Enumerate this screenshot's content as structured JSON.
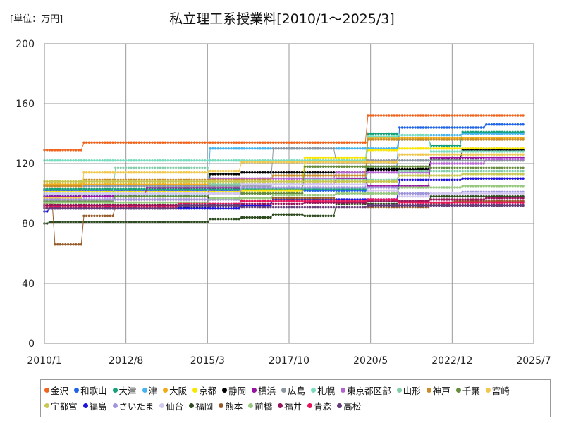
{
  "chart_data": {
    "type": "line",
    "title": "私立理工系授業料[2010/1～2025/3]",
    "unit_label": "[単位：万円]",
    "xlabel": "",
    "ylabel": "",
    "xlim": [
      "2010/1",
      "2025/7"
    ],
    "ylim": [
      0,
      200
    ],
    "x_ticks": [
      "2010/1",
      "2012/8",
      "2015/3",
      "2017/10",
      "2020/5",
      "2022/12",
      "2025/7"
    ],
    "y_ticks": [
      0,
      40,
      80,
      120,
      160,
      200
    ],
    "grid": true,
    "legend_position": "bottom",
    "series": [
      {
        "name": "金沢",
        "color": "#f0641e",
        "points": [
          [
            "2010/1",
            129
          ],
          [
            "2011/4",
            134
          ],
          [
            "2020/4",
            152
          ]
        ]
      },
      {
        "name": "和歌山",
        "color": "#1e64e6",
        "points": [
          [
            "2010/1",
            102
          ],
          [
            "2020/4",
            118
          ],
          [
            "2021/4",
            144
          ],
          [
            "2024/1",
            146
          ]
        ]
      },
      {
        "name": "大津",
        "color": "#14a078",
        "points": [
          [
            "2010/1",
            103
          ],
          [
            "2020/4",
            140
          ],
          [
            "2021/4",
            136
          ],
          [
            "2022/4",
            132
          ],
          [
            "2023/4",
            141
          ]
        ]
      },
      {
        "name": "津",
        "color": "#46b4f0",
        "points": [
          [
            "2010/1",
            99
          ],
          [
            "2015/4",
            130
          ],
          [
            "2021/4",
            139
          ],
          [
            "2023/4",
            140
          ]
        ]
      },
      {
        "name": "大阪",
        "color": "#f0aa14",
        "points": [
          [
            "2010/1",
            106
          ],
          [
            "2018/4",
            122
          ],
          [
            "2020/4",
            137
          ],
          [
            "2023/4",
            137
          ]
        ]
      },
      {
        "name": "京都",
        "color": "#fae600",
        "points": [
          [
            "2010/1",
            101
          ],
          [
            "2016/4",
            102
          ],
          [
            "2018/4",
            124
          ],
          [
            "2020/4",
            129
          ],
          [
            "2021/4",
            130
          ]
        ]
      },
      {
        "name": "静岡",
        "color": "#000000",
        "points": [
          [
            "2010/1",
            91
          ],
          [
            "2015/4",
            113
          ],
          [
            "2016/4",
            114
          ],
          [
            "2020/4",
            116
          ],
          [
            "2022/4",
            123
          ],
          [
            "2023/4",
            129
          ]
        ]
      },
      {
        "name": "横浜",
        "color": "#9614a0",
        "points": [
          [
            "2010/1",
            98
          ],
          [
            "2013/4",
            104
          ],
          [
            "2016/4",
            106
          ],
          [
            "2019/4",
            110
          ],
          [
            "2020/4",
            105
          ],
          [
            "2022/4",
            124
          ]
        ]
      },
      {
        "name": "広島",
        "color": "#8c96a0",
        "points": [
          [
            "2010/1",
            105
          ],
          [
            "2017/4",
            130
          ],
          [
            "2019/4",
            121
          ],
          [
            "2020/4",
            122
          ],
          [
            "2022/4",
            122
          ]
        ]
      },
      {
        "name": "札幌",
        "color": "#78dcbe",
        "points": [
          [
            "2010/1",
            122
          ],
          [
            "2015/4",
            122
          ],
          [
            "2020/4",
            138
          ],
          [
            "2021/4",
            139
          ],
          [
            "2022/4",
            128
          ]
        ]
      },
      {
        "name": "東京都区部",
        "color": "#b464d2",
        "points": [
          [
            "2010/1",
            96
          ],
          [
            "2015/4",
            110
          ],
          [
            "2019/4",
            114
          ],
          [
            "2022/4",
            120
          ],
          [
            "2024/1",
            123
          ]
        ]
      },
      {
        "name": "山形",
        "color": "#82cdaa",
        "points": [
          [
            "2010/1",
            100
          ],
          [
            "2012/4",
            117
          ],
          [
            "2015/4",
            106
          ],
          [
            "2018/4",
            109
          ],
          [
            "2021/4",
            115
          ]
        ]
      },
      {
        "name": "神戸",
        "color": "#c88c28",
        "points": [
          [
            "2010/1",
            105
          ],
          [
            "2011/4",
            109
          ],
          [
            "2017/4",
            112
          ],
          [
            "2020/4",
            136
          ]
        ]
      },
      {
        "name": "千葉",
        "color": "#648c3c",
        "points": [
          [
            "2010/1",
            95
          ],
          [
            "2012/4",
            98
          ],
          [
            "2015/4",
            100
          ],
          [
            "2018/4",
            118
          ],
          [
            "2022/4",
            117
          ]
        ]
      },
      {
        "name": "宮崎",
        "color": "#f0c850",
        "points": [
          [
            "2010/1",
            97
          ],
          [
            "2011/4",
            114
          ],
          [
            "2015/4",
            115
          ],
          [
            "2016/4",
            121
          ],
          [
            "2021/4",
            126
          ]
        ]
      },
      {
        "name": "宇都宮",
        "color": "#c8c850",
        "points": [
          [
            "2010/1",
            108
          ],
          [
            "2016/4",
            108
          ],
          [
            "2021/4",
            112
          ],
          [
            "2023/4",
            113
          ]
        ]
      },
      {
        "name": "福島",
        "color": "#1e14dc",
        "points": [
          [
            "2010/1",
            88
          ],
          [
            "2010/3",
            90
          ],
          [
            "2016/4",
            92
          ],
          [
            "2017/4",
            96
          ],
          [
            "2021/4",
            109
          ],
          [
            "2023/4",
            110
          ]
        ]
      },
      {
        "name": "さいたま",
        "color": "#a096dc",
        "points": [
          [
            "2010/1",
            96
          ],
          [
            "2016/4",
            104
          ],
          [
            "2021/4",
            100
          ],
          [
            "2023/4",
            101
          ]
        ]
      },
      {
        "name": "仙台",
        "color": "#d2c8f0",
        "points": [
          [
            "2010/1",
            100
          ],
          [
            "2016/4",
            106
          ],
          [
            "2020/4",
            102
          ],
          [
            "2021/4",
            98
          ],
          [
            "2022/4",
            100
          ]
        ]
      },
      {
        "name": "福岡",
        "color": "#2d4b1e",
        "points": [
          [
            "2010/1",
            80
          ],
          [
            "2010/3",
            81
          ],
          [
            "2015/4",
            83
          ],
          [
            "2016/4",
            84
          ],
          [
            "2017/4",
            86
          ],
          [
            "2018/4",
            85
          ],
          [
            "2019/4",
            93
          ],
          [
            "2021/4",
            95
          ],
          [
            "2022/4",
            98
          ]
        ]
      },
      {
        "name": "熊本",
        "color": "#965a28",
        "points": [
          [
            "2010/1",
            93
          ],
          [
            "2010/5",
            66
          ],
          [
            "2011/4",
            85
          ],
          [
            "2012/4",
            92
          ],
          [
            "2016/4",
            97
          ],
          [
            "2019/4",
            95
          ],
          [
            "2020/4",
            91
          ],
          [
            "2022/4",
            93
          ],
          [
            "2023/1",
            95
          ]
        ]
      },
      {
        "name": "前橋",
        "color": "#96c87d",
        "points": [
          [
            "2010/1",
            94
          ],
          [
            "2015/4",
            97
          ],
          [
            "2017/4",
            99
          ],
          [
            "2019/4",
            100
          ],
          [
            "2021/4",
            104
          ],
          [
            "2023/4",
            105
          ]
        ]
      },
      {
        "name": "福井",
        "color": "#96145a",
        "points": [
          [
            "2010/1",
            92
          ],
          [
            "2015/4",
            93
          ],
          [
            "2018/4",
            94
          ],
          [
            "2020/4",
            95
          ],
          [
            "2022/4",
            96
          ],
          [
            "2024/1",
            97
          ]
        ]
      },
      {
        "name": "青森",
        "color": "#e6145a",
        "points": [
          [
            "2010/1",
            91
          ],
          [
            "2014/4",
            93
          ],
          [
            "2016/4",
            95
          ],
          [
            "2020/4",
            96
          ],
          [
            "2021/4",
            94
          ],
          [
            "2024/1",
            94
          ]
        ]
      },
      {
        "name": "高松",
        "color": "#643c78",
        "points": [
          [
            "2010/1",
            90
          ],
          [
            "2014/4",
            92
          ],
          [
            "2016/4",
            91
          ],
          [
            "2020/4",
            92
          ],
          [
            "2022/4",
            92
          ]
        ]
      }
    ]
  }
}
